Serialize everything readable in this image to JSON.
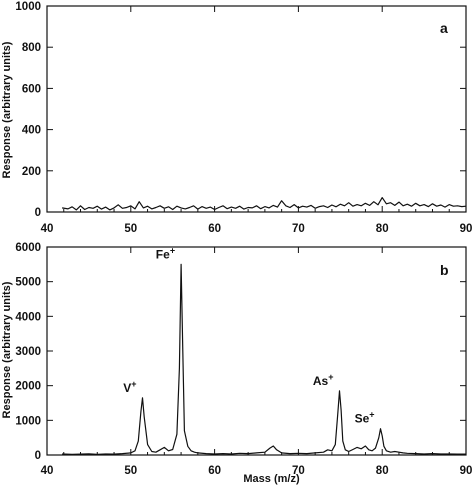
{
  "chart_data": [
    {
      "type": "line",
      "panel_label": "a",
      "xlabel": "",
      "ylabel": "Response (arbitrary units)",
      "xlim": [
        40,
        90
      ],
      "ylim": [
        0,
        1000
      ],
      "x_ticks": [
        "40",
        "50",
        "60",
        "70",
        "80",
        "90"
      ],
      "y_ticks": [
        "0",
        "200",
        "400",
        "600",
        "800",
        "1000"
      ],
      "series": [
        {
          "x": [
            41.8,
            42.5,
            43.0,
            43.5,
            44.0,
            44.5,
            45.0,
            45.5,
            46.0,
            46.5,
            47.0,
            47.5,
            48.0,
            48.5,
            49.0,
            49.5,
            50.0,
            50.5,
            51.0,
            51.5,
            52.0,
            52.5,
            53.0,
            53.5,
            54.0,
            54.5,
            55.0,
            55.5,
            56.0,
            56.5,
            57.0,
            57.5,
            58.0,
            58.5,
            59.0,
            59.5,
            60.0,
            60.5,
            61.0,
            61.5,
            62.0,
            62.5,
            63.0,
            63.5,
            64.0,
            64.5,
            65.0,
            65.5,
            66.0,
            66.5,
            67.0,
            67.5,
            68.0,
            68.5,
            69.0,
            69.5,
            70.0,
            70.5,
            71.0,
            71.5,
            72.0,
            72.5,
            73.0,
            73.5,
            74.0,
            74.5,
            75.0,
            75.5,
            76.0,
            76.5,
            77.0,
            77.5,
            78.0,
            78.5,
            79.0,
            79.5,
            80.0,
            80.5,
            81.0,
            81.5,
            82.0,
            82.5,
            83.0,
            83.5,
            84.0,
            84.5,
            85.0,
            85.5,
            86.0,
            86.5,
            87.0,
            87.5,
            88.0,
            88.5,
            89.0,
            89.5,
            90.0
          ],
          "y": [
            20,
            15,
            25,
            10,
            30,
            12,
            22,
            18,
            28,
            14,
            24,
            10,
            20,
            35,
            18,
            22,
            30,
            15,
            50,
            20,
            28,
            15,
            22,
            30,
            18,
            25,
            12,
            28,
            20,
            15,
            22,
            30,
            14,
            26,
            18,
            24,
            12,
            22,
            30,
            16,
            24,
            18,
            28,
            14,
            22,
            20,
            30,
            16,
            26,
            20,
            32,
            24,
            55,
            30,
            22,
            36,
            20,
            28,
            24,
            32,
            18,
            26,
            30,
            22,
            34,
            25,
            38,
            30,
            45,
            28,
            36,
            30,
            42,
            32,
            50,
            35,
            70,
            40,
            45,
            32,
            48,
            30,
            38,
            28,
            42,
            30,
            36,
            26,
            40,
            28,
            34,
            24,
            36,
            28,
            30,
            26,
            28
          ]
        }
      ]
    },
    {
      "type": "line",
      "panel_label": "b",
      "xlabel": "Mass  (m/z)",
      "ylabel": "Response  (arbitrary units)",
      "xlim": [
        40,
        90
      ],
      "ylim": [
        0,
        6000
      ],
      "x_ticks": [
        "40",
        "50",
        "60",
        "70",
        "80",
        "90"
      ],
      "y_ticks": [
        "0",
        "1000",
        "2000",
        "3000",
        "4000",
        "5000",
        "6000"
      ],
      "series": [
        {
          "x": [
            41.8,
            43.0,
            44.0,
            45.0,
            46.0,
            47.0,
            48.0,
            49.0,
            50.0,
            50.5,
            50.9,
            51.2,
            51.4,
            51.6,
            52.0,
            52.5,
            53.0,
            53.5,
            54.0,
            54.5,
            55.0,
            55.5,
            55.8,
            56.0,
            56.2,
            56.4,
            56.8,
            57.2,
            57.6,
            58.0,
            59.0,
            60.0,
            61.0,
            62.0,
            63.0,
            64.0,
            65.0,
            66.0,
            66.6,
            67.0,
            67.4,
            68.0,
            69.0,
            70.0,
            71.0,
            72.0,
            73.0,
            73.5,
            74.0,
            74.4,
            74.7,
            74.9,
            75.1,
            75.3,
            75.6,
            76.0,
            76.5,
            77.0,
            77.5,
            78.0,
            78.4,
            78.8,
            79.2,
            79.6,
            79.8,
            80.0,
            80.2,
            80.5,
            81.0,
            81.5,
            82.0,
            82.5,
            83.0,
            84.0,
            85.0,
            86.0,
            87.0,
            88.0,
            89.0,
            90.0
          ],
          "y": [
            30,
            20,
            25,
            35,
            20,
            30,
            25,
            40,
            60,
            120,
            400,
            1250,
            1650,
            1100,
            300,
            100,
            80,
            150,
            220,
            120,
            160,
            600,
            2500,
            5500,
            3000,
            700,
            250,
            120,
            80,
            60,
            40,
            30,
            40,
            30,
            50,
            40,
            60,
            80,
            200,
            260,
            150,
            60,
            40,
            50,
            40,
            60,
            80,
            150,
            120,
            300,
            1200,
            1850,
            1300,
            400,
            150,
            100,
            160,
            220,
            180,
            260,
            150,
            120,
            200,
            500,
            760,
            550,
            250,
            120,
            80,
            100,
            80,
            60,
            50,
            40,
            30,
            40,
            30,
            30,
            25,
            25
          ]
        }
      ],
      "annotations": [
        {
          "x": 51.4,
          "y": 1650,
          "label": "V",
          "sup": "+"
        },
        {
          "x": 56.0,
          "y": 5500,
          "label": "Fe",
          "sup": "+"
        },
        {
          "x": 74.9,
          "y": 1850,
          "label": "As",
          "sup": "+"
        },
        {
          "x": 79.8,
          "y": 760,
          "label": "Se",
          "sup": "+"
        }
      ]
    }
  ]
}
